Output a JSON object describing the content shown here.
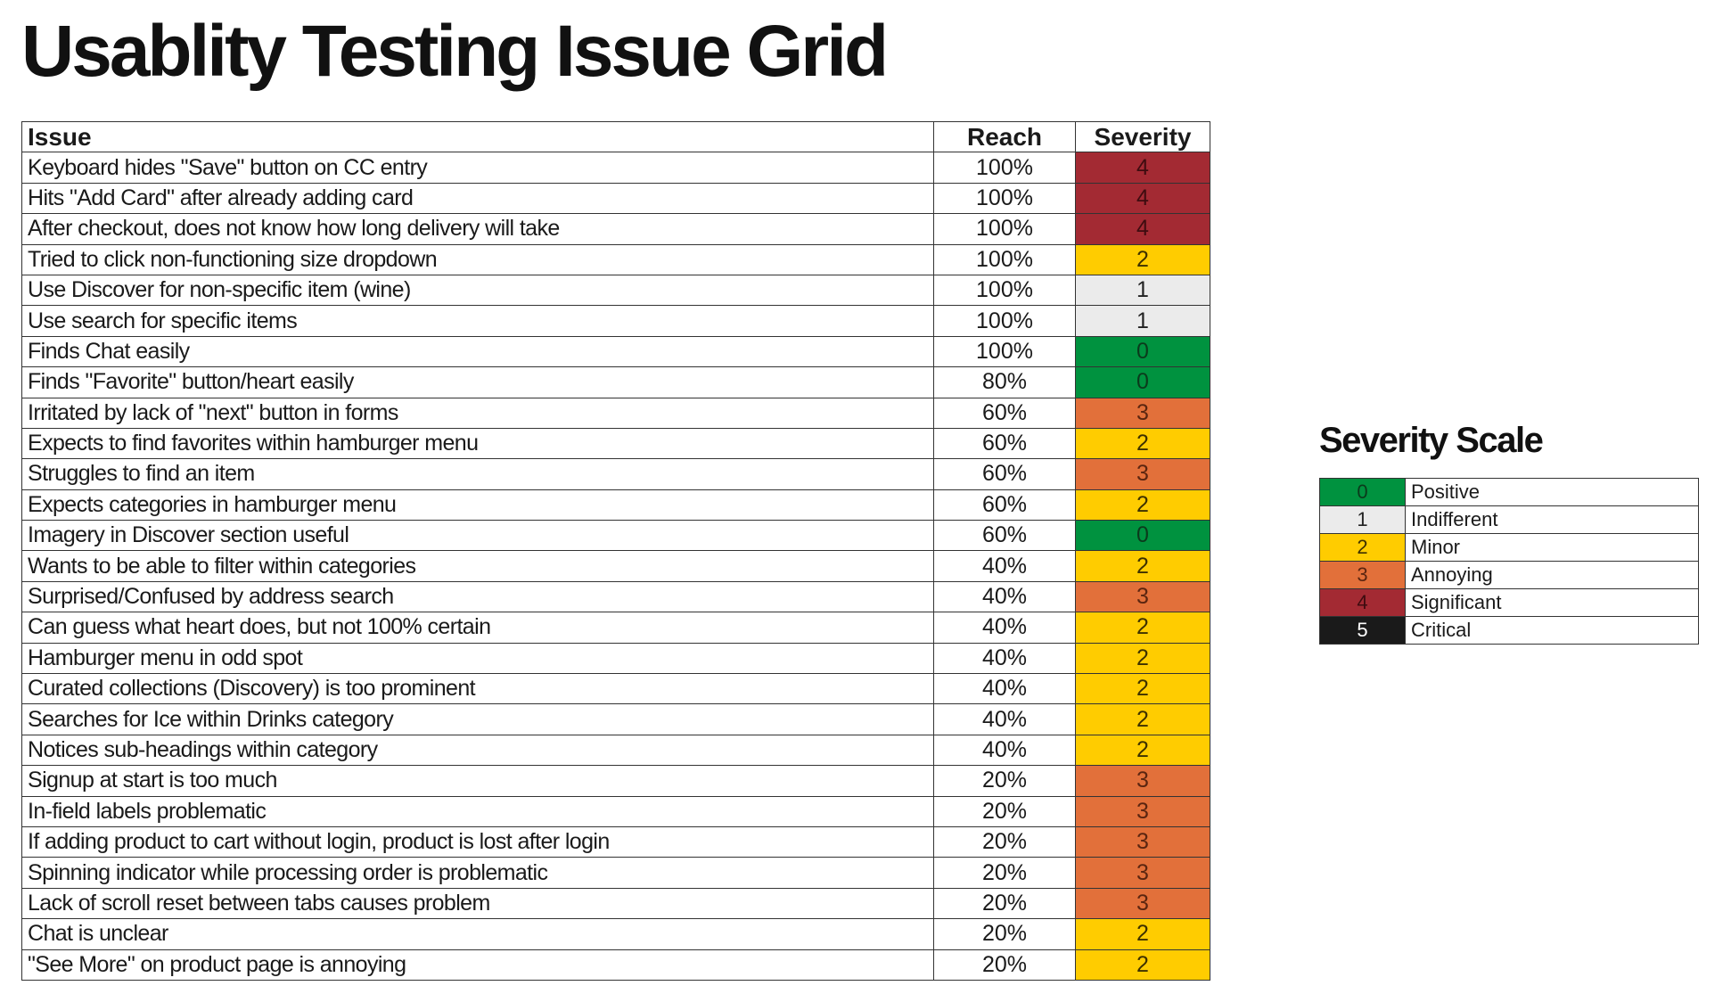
{
  "title": "Usablity Testing Issue Grid",
  "table": {
    "headers": {
      "issue": "Issue",
      "reach": "Reach",
      "severity": "Severity"
    },
    "rows": [
      {
        "issue": "Keyboard hides \"Save\" button on CC entry",
        "reach": "100%",
        "severity": "4"
      },
      {
        "issue": "Hits \"Add Card\" after already adding card",
        "reach": "100%",
        "severity": "4"
      },
      {
        "issue": "After checkout, does not know how long delivery will take",
        "reach": "100%",
        "severity": "4"
      },
      {
        "issue": "Tried to click non-functioning size dropdown",
        "reach": "100%",
        "severity": "2"
      },
      {
        "issue": "Use Discover for non-specific item (wine)",
        "reach": "100%",
        "severity": "1"
      },
      {
        "issue": "Use search for specific items",
        "reach": "100%",
        "severity": "1"
      },
      {
        "issue": "Finds Chat easily",
        "reach": "100%",
        "severity": "0"
      },
      {
        "issue": "Finds \"Favorite\" button/heart easily",
        "reach": "80%",
        "severity": "0"
      },
      {
        "issue": "Irritated by lack of \"next\" button in forms",
        "reach": "60%",
        "severity": "3"
      },
      {
        "issue": "Expects to find favorites within hamburger menu",
        "reach": "60%",
        "severity": "2"
      },
      {
        "issue": "Struggles to find an item",
        "reach": "60%",
        "severity": "3"
      },
      {
        "issue": "Expects categories in hamburger menu",
        "reach": "60%",
        "severity": "2"
      },
      {
        "issue": "Imagery in Discover section useful",
        "reach": "60%",
        "severity": "0"
      },
      {
        "issue": "Wants to be able to filter within categories",
        "reach": "40%",
        "severity": "2"
      },
      {
        "issue": "Surprised/Confused by address search",
        "reach": "40%",
        "severity": "3"
      },
      {
        "issue": "Can guess what heart does, but not 100% certain",
        "reach": "40%",
        "severity": "2"
      },
      {
        "issue": "Hamburger menu in odd spot",
        "reach": "40%",
        "severity": "2"
      },
      {
        "issue": "Curated collections (Discovery) is too prominent",
        "reach": "40%",
        "severity": "2"
      },
      {
        "issue": "Searches for Ice within Drinks category",
        "reach": "40%",
        "severity": "2"
      },
      {
        "issue": "Notices sub-headings within category",
        "reach": "40%",
        "severity": "2"
      },
      {
        "issue": "Signup at start is too much",
        "reach": "20%",
        "severity": "3"
      },
      {
        "issue": "In-field labels problematic",
        "reach": "20%",
        "severity": "3"
      },
      {
        "issue": "If adding product to cart without login, product is lost after login",
        "reach": "20%",
        "severity": "3"
      },
      {
        "issue": "Spinning indicator while processing order is problematic",
        "reach": "20%",
        "severity": "3"
      },
      {
        "issue": "Lack of scroll reset between tabs causes problem",
        "reach": "20%",
        "severity": "3"
      },
      {
        "issue": "Chat is unclear",
        "reach": "20%",
        "severity": "2"
      },
      {
        "issue": "\"See More\" on product page is annoying",
        "reach": "20%",
        "severity": "2"
      }
    ]
  },
  "severity_scale": {
    "title": "Severity Scale",
    "levels": [
      {
        "value": "0",
        "label": "Positive",
        "color": "#00923f"
      },
      {
        "value": "1",
        "label": "Indifferent",
        "color": "#ebebeb"
      },
      {
        "value": "2",
        "label": "Minor",
        "color": "#ffcc00"
      },
      {
        "value": "3",
        "label": "Annoying",
        "color": "#e2703a"
      },
      {
        "value": "4",
        "label": "Significant",
        "color": "#a32a33"
      },
      {
        "value": "5",
        "label": "Critical",
        "color": "#1a1a1a"
      }
    ]
  }
}
